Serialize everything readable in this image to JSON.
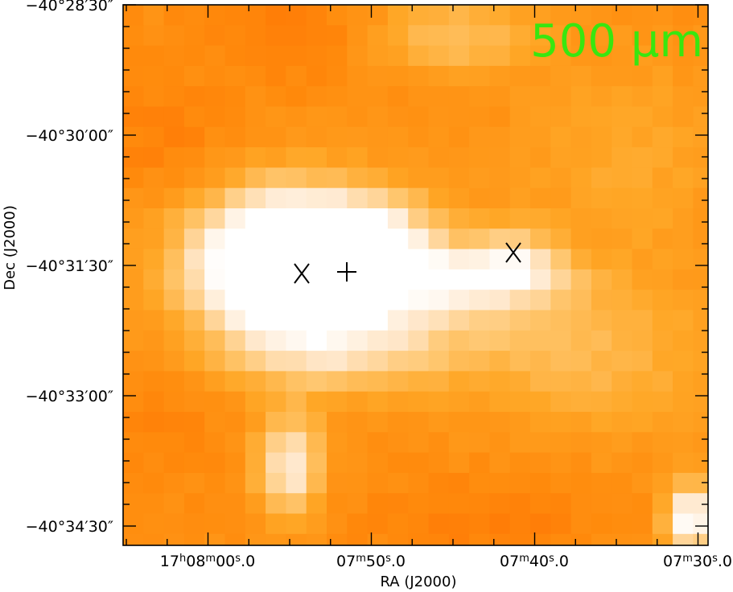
{
  "figure": {
    "band_label": "500 μm",
    "x_axis_title": "RA (J2000)",
    "y_axis_title": "Dec (J2000)",
    "colors": {
      "band_label": "#39e60f",
      "markers": "#000000",
      "frame": "#000000",
      "colormap": [
        "#ff6a00",
        "#ff8a0c",
        "#ffa726",
        "#ffc66e",
        "#ffe6c8",
        "#ffffff"
      ]
    }
  },
  "ra_ticks": [
    {
      "h": "17",
      "hu": "h",
      "m": "08",
      "mu": "m",
      "s": "00",
      "su": "s",
      "frac": ".0"
    },
    {
      "h": "",
      "hu": "",
      "m": "07",
      "mu": "m",
      "s": "50",
      "su": "s",
      "frac": ".0"
    },
    {
      "h": "",
      "hu": "",
      "m": "07",
      "mu": "m",
      "s": "40",
      "su": "s",
      "frac": ".0"
    },
    {
      "h": "",
      "hu": "",
      "m": "07",
      "mu": "m",
      "s": "30",
      "su": "s",
      "frac": ".0"
    }
  ],
  "dec_ticks": [
    "−40°28′30″",
    "−40°30′00″",
    "−40°31′30″",
    "−40°33′00″",
    "−40°34′30″"
  ],
  "markers": [
    {
      "type": "x-cross",
      "name": "x-marker-left"
    },
    {
      "type": "plus",
      "name": "plus-marker"
    },
    {
      "type": "x-cross",
      "name": "x-marker-right"
    }
  ]
}
